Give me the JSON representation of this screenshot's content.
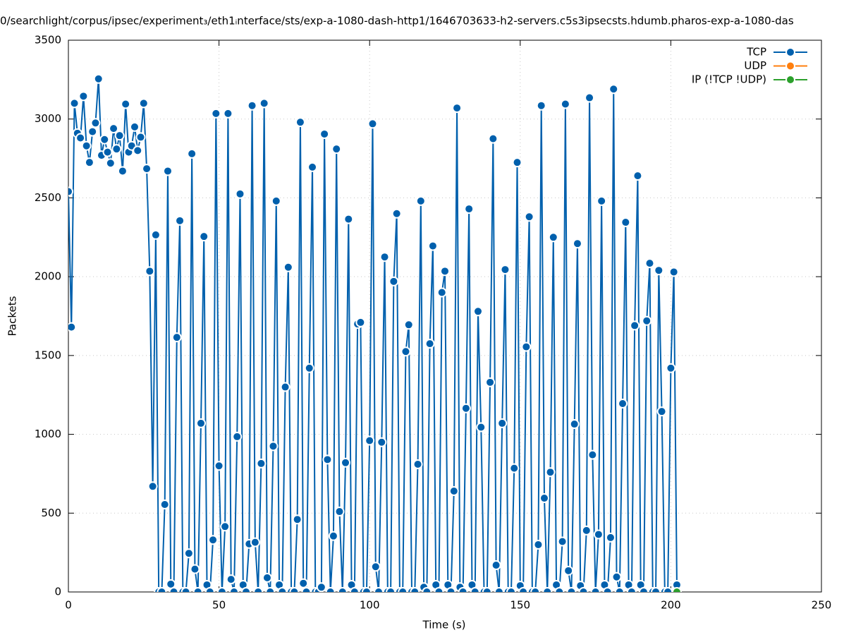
{
  "chart_data": {
    "type": "line",
    "title": "0/searchlight/corpus/ipsec/experiment₃/eth1ᵢnterface/sts/exp-a-1080-dash-http1/1646703633-h2-servers.c5s3ipsecsts.hdumb.pharos-exp-a-1080-das",
    "x_label": "Time (s)",
    "y_label": "Packets",
    "xlim": [
      0,
      250
    ],
    "xticks": [
      0,
      50,
      100,
      150,
      200,
      250
    ],
    "ylim": [
      0,
      3500
    ],
    "yticks": [
      0,
      500,
      1000,
      1500,
      2000,
      2500,
      3000,
      3500
    ],
    "grid": true,
    "legend": "top-right",
    "x": [
      0,
      1,
      2,
      3,
      4,
      5,
      6,
      7,
      8,
      9,
      10,
      11,
      12,
      13,
      14,
      15,
      16,
      17,
      18,
      19,
      20,
      21,
      22,
      23,
      24,
      25,
      26,
      27,
      28,
      29,
      30,
      31,
      32,
      33,
      34,
      35,
      36,
      37,
      38,
      39,
      40,
      41,
      42,
      43,
      44,
      45,
      46,
      47,
      48,
      49,
      50,
      51,
      52,
      53,
      54,
      55,
      56,
      57,
      58,
      59,
      60,
      61,
      62,
      63,
      64,
      65,
      66,
      67,
      68,
      69,
      70,
      71,
      72,
      73,
      74,
      75,
      76,
      77,
      78,
      79,
      80,
      81,
      82,
      83,
      84,
      85,
      86,
      87,
      88,
      89,
      90,
      91,
      92,
      93,
      94,
      95,
      96,
      97,
      98,
      99,
      100,
      101,
      102,
      103,
      104,
      105,
      106,
      107,
      108,
      109,
      110,
      111,
      112,
      113,
      114,
      115,
      116,
      117,
      118,
      119,
      120,
      121,
      122,
      123,
      124,
      125,
      126,
      127,
      128,
      129,
      130,
      131,
      132,
      133,
      134,
      135,
      136,
      137,
      138,
      139,
      140,
      141,
      142,
      143,
      144,
      145,
      146,
      147,
      148,
      149,
      150,
      151,
      152,
      153,
      154,
      155,
      156,
      157,
      158,
      159,
      160,
      161,
      162,
      163,
      164,
      165,
      166,
      167,
      168,
      169,
      170,
      171,
      172,
      173,
      174,
      175,
      176,
      177,
      178,
      179,
      180,
      181,
      182,
      183,
      184,
      185,
      186,
      187,
      188,
      189,
      190,
      191,
      192,
      193,
      194,
      195,
      196,
      197,
      198,
      199,
      200,
      201,
      202
    ],
    "series": [
      {
        "name": "TCP",
        "color": "#0060ad",
        "values": [
          2540,
          1680,
          3100,
          2910,
          2880,
          3145,
          2830,
          2725,
          2920,
          2975,
          3255,
          2770,
          2870,
          2790,
          2720,
          2940,
          2810,
          2895,
          2670,
          3095,
          2790,
          2830,
          2950,
          2800,
          2885,
          3100,
          2685,
          2035,
          670,
          2265,
          0,
          0,
          555,
          2670,
          50,
          0,
          1615,
          2355,
          0,
          0,
          245,
          2780,
          145,
          0,
          1070,
          2255,
          45,
          0,
          330,
          3035,
          800,
          0,
          415,
          3035,
          80,
          0,
          985,
          2525,
          45,
          0,
          305,
          3085,
          315,
          0,
          815,
          3100,
          90,
          0,
          925,
          2480,
          45,
          0,
          1300,
          2060,
          0,
          0,
          460,
          2980,
          55,
          0,
          1420,
          2695,
          0,
          0,
          30,
          2905,
          840,
          0,
          355,
          2810,
          510,
          0,
          820,
          2365,
          45,
          0,
          1700,
          1710,
          0,
          0,
          960,
          2970,
          160,
          0,
          950,
          2125,
          0,
          0,
          1970,
          2400,
          0,
          0,
          1525,
          1695,
          0,
          0,
          810,
          2480,
          30,
          0,
          1575,
          2195,
          45,
          0,
          1900,
          2035,
          45,
          0,
          640,
          3070,
          30,
          0,
          1165,
          2430,
          45,
          0,
          1780,
          1045,
          0,
          0,
          1330,
          2875,
          170,
          0,
          1070,
          2045,
          0,
          0,
          785,
          2725,
          40,
          0,
          1555,
          2380,
          0,
          0,
          300,
          3085,
          595,
          0,
          760,
          2250,
          45,
          0,
          320,
          3095,
          135,
          0,
          1065,
          2210,
          40,
          0,
          390,
          3135,
          870,
          0,
          365,
          2480,
          45,
          0,
          345,
          3190,
          95,
          0,
          1195,
          2345,
          45,
          0,
          1690,
          2640,
          45,
          0,
          1720,
          2085,
          0,
          0,
          2040,
          1145,
          0,
          0,
          1420,
          2030,
          45
        ]
      },
      {
        "name": "UDP",
        "color": "#ff7f0e",
        "values": [
          null,
          null,
          null,
          null,
          null,
          null,
          null,
          null,
          null,
          null,
          null,
          null,
          null,
          null,
          null,
          null,
          null,
          null,
          null,
          null,
          null,
          null,
          null,
          null,
          null,
          null,
          null,
          null,
          null,
          null,
          null,
          null,
          null,
          null,
          null,
          null,
          null,
          null,
          null,
          null,
          null,
          null,
          null,
          null,
          null,
          null,
          null,
          null,
          null,
          null,
          null,
          null,
          null,
          null,
          null,
          null,
          null,
          null,
          null,
          null,
          null,
          null,
          null,
          null,
          null,
          null,
          null,
          null,
          null,
          null,
          null,
          null,
          null,
          null,
          null,
          null,
          null,
          null,
          null,
          null,
          null,
          null,
          null,
          null,
          null,
          null,
          null,
          null,
          null,
          null,
          null,
          null,
          null,
          null,
          null,
          null,
          null,
          null,
          null,
          null,
          null,
          null,
          null,
          null,
          null,
          null,
          null,
          null,
          null,
          null,
          null,
          null,
          null,
          null,
          null,
          null,
          null,
          null,
          null,
          null,
          null,
          null,
          null,
          null,
          null,
          null,
          null,
          null,
          null,
          null,
          null,
          null,
          null,
          null,
          null,
          null,
          null,
          null,
          null,
          null,
          null,
          null,
          null,
          null,
          null,
          null,
          null,
          null,
          null,
          null,
          null,
          null,
          null,
          null,
          null,
          null,
          null,
          null,
          null,
          null,
          null,
          null,
          null,
          null,
          null,
          null,
          null,
          null,
          null,
          null,
          null,
          null,
          null,
          null,
          null,
          null,
          null,
          null,
          null,
          null,
          null,
          null,
          null,
          null,
          null,
          null,
          null,
          null,
          null,
          null,
          null,
          null,
          null,
          null,
          null,
          null,
          null,
          null,
          null,
          null,
          null,
          null,
          null
        ]
      },
      {
        "name": "IP (!TCP  !UDP)",
        "color": "#2ca02c",
        "values": [
          null,
          null,
          null,
          null,
          null,
          null,
          null,
          null,
          null,
          null,
          null,
          null,
          null,
          null,
          null,
          null,
          null,
          null,
          null,
          null,
          null,
          null,
          null,
          null,
          null,
          null,
          null,
          null,
          null,
          null,
          null,
          null,
          null,
          null,
          null,
          null,
          null,
          null,
          null,
          null,
          null,
          null,
          null,
          null,
          null,
          null,
          null,
          null,
          null,
          null,
          null,
          null,
          null,
          null,
          null,
          null,
          null,
          null,
          null,
          null,
          null,
          null,
          null,
          null,
          null,
          null,
          null,
          null,
          null,
          null,
          null,
          null,
          null,
          null,
          null,
          null,
          null,
          null,
          null,
          null,
          null,
          null,
          null,
          null,
          null,
          null,
          null,
          null,
          null,
          null,
          null,
          null,
          null,
          null,
          null,
          null,
          null,
          null,
          null,
          null,
          null,
          null,
          null,
          null,
          null,
          null,
          null,
          null,
          null,
          null,
          null,
          null,
          null,
          null,
          null,
          null,
          null,
          null,
          null,
          null,
          null,
          null,
          null,
          null,
          null,
          null,
          null,
          null,
          null,
          null,
          null,
          null,
          null,
          null,
          null,
          null,
          null,
          null,
          null,
          null,
          null,
          null,
          null,
          null,
          null,
          null,
          null,
          null,
          null,
          null,
          null,
          null,
          null,
          null,
          null,
          null,
          null,
          null,
          null,
          null,
          null,
          null,
          null,
          null,
          null,
          null,
          null,
          null,
          null,
          null,
          null,
          null,
          null,
          null,
          null,
          null,
          null,
          null,
          null,
          null,
          null,
          null,
          null,
          null,
          null,
          null,
          null,
          null,
          null,
          null,
          null,
          null,
          null,
          null,
          null,
          null,
          null,
          null,
          null,
          null,
          null,
          null,
          0
        ]
      }
    ]
  }
}
